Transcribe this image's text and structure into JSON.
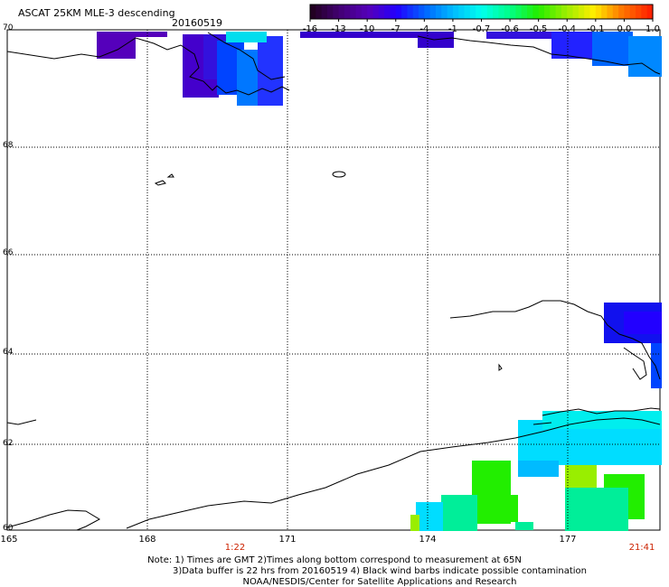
{
  "header": {
    "title": "ASCAT 25KM MLE-3 descending",
    "date": "20160519"
  },
  "colorbar": {
    "labels": [
      "-16",
      "-13",
      "-10",
      "-7",
      "-4",
      "-1",
      "-0.7",
      "-0.6",
      "-0.5",
      "-0.4",
      "-0.1",
      "0.0",
      "1.0"
    ],
    "colors": [
      "#220022",
      "#440077",
      "#5500bb",
      "#2200ff",
      "#0066ff",
      "#00bbff",
      "#00ffee",
      "#00ff88",
      "#22ee00",
      "#99ee00",
      "#ffee00",
      "#ff7700",
      "#ff2200"
    ]
  },
  "axes": {
    "lat_labels": [
      "70",
      "68",
      "66",
      "64",
      "62",
      "60"
    ],
    "lon_labels": [
      "165",
      "168",
      "171",
      "174",
      "177"
    ],
    "times": [
      "1:22",
      "21:41"
    ]
  },
  "notes": {
    "line1": "Note: 1) Times are GMT 2)Times along bottom correspond to measurement at 65N",
    "line2": "3)Data buffer is 22 hrs from 20160519 4) Black wind barbs indicate possible contamination",
    "line3": "NOAA/NESDIS/Center for Satellite Applications and Research"
  }
}
